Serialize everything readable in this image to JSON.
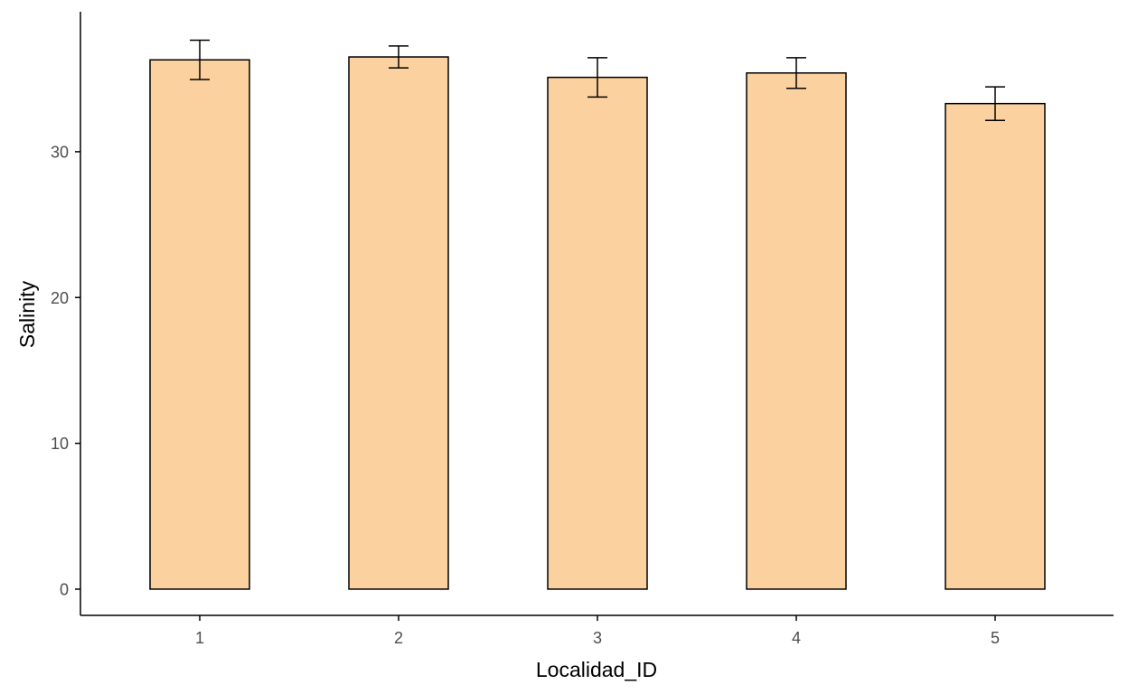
{
  "chart_data": {
    "type": "bar",
    "categories": [
      "1",
      "2",
      "3",
      "4",
      "5"
    ],
    "series": [
      {
        "values": [
          36.3,
          36.5,
          35.1,
          35.4,
          33.3
        ],
        "error": [
          1.35,
          0.75,
          1.35,
          1.05,
          1.15
        ]
      }
    ],
    "xlabel": "Localidad_ID",
    "ylabel": "Salinity",
    "ylim": [
      -1.8,
      39.6
    ],
    "yticks": [
      0,
      10,
      20,
      30
    ],
    "ytick_labels": [
      "0",
      "10",
      "20",
      "30"
    ],
    "grid": false,
    "legend": "none",
    "colors": {
      "bar_fill": "#FBD29F",
      "bar_stroke": "#000000",
      "errorbar": "#000000",
      "axis": "#000000",
      "tick_label": "#4d4d4d"
    }
  }
}
